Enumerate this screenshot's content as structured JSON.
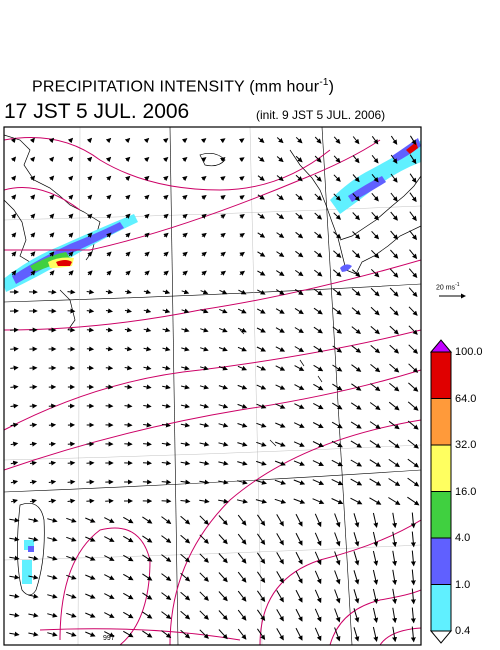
{
  "title": {
    "main": "PRECIPITATION INTENSITY (mm hour",
    "exp": "-1",
    "close": ")"
  },
  "valid_time": "17 JST 5 JUL. 2006",
  "init_time": "(init. 9 JST 5 JUL. 2006)",
  "wind_scale": {
    "label": "20 ms",
    "exp": "-1"
  },
  "isobar_labels": [
    "997"
  ],
  "colorbar": {
    "levels": [
      "100.0",
      "64.0",
      "32.0",
      "16.0",
      "4.0",
      "1.0",
      "0.4"
    ],
    "colors": [
      "#e00000",
      "#ff9a3a",
      "#ffff60",
      "#40d040",
      "#6060ff",
      "#60f0ff"
    ],
    "top_arrow_color": "#c000ff",
    "bottom_arrow_color": "#ffffff"
  },
  "colors": {
    "isobar": "#cc0066",
    "coast": "#000000",
    "grid": "#000000"
  }
}
